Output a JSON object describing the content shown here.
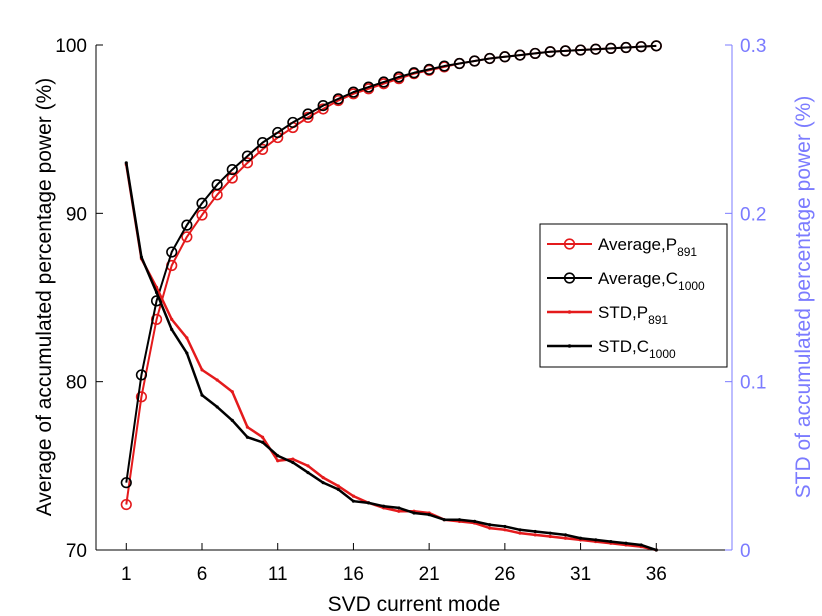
{
  "chart_data": {
    "type": "line",
    "xlabel": "SVD current mode",
    "ylabel_left": "Average of accumulated percentage power (%)",
    "ylabel_right": "STD of accumulated percentage power (%)",
    "xlim": [
      -1,
      41
    ],
    "ylim_left": [
      70,
      100
    ],
    "ylim_right": [
      0,
      0.3
    ],
    "x_ticks": [
      1,
      6,
      11,
      16,
      21,
      26,
      31,
      36
    ],
    "y_left_ticks": [
      70,
      80,
      90,
      100
    ],
    "y_right_ticks": [
      0,
      0.1,
      0.2,
      0.3
    ],
    "legend_position": "right",
    "x": [
      1,
      2,
      3,
      4,
      5,
      6,
      7,
      8,
      9,
      10,
      11,
      12,
      13,
      14,
      15,
      16,
      17,
      18,
      19,
      20,
      21,
      22,
      23,
      24,
      25,
      26,
      27,
      28,
      29,
      30,
      31,
      32,
      33,
      34,
      35,
      36
    ],
    "series": [
      {
        "name": "Average,P",
        "subscript": "891",
        "axis": "left",
        "color": "#e41a1c",
        "marker": "circle",
        "values": [
          72.7,
          79.1,
          83.7,
          86.9,
          88.6,
          89.9,
          91.1,
          92.1,
          93.0,
          93.8,
          94.5,
          95.1,
          95.7,
          96.2,
          96.7,
          97.1,
          97.4,
          97.7,
          98.0,
          98.3,
          98.5,
          98.7,
          98.9,
          99.05,
          99.2,
          99.3,
          99.4,
          99.5,
          99.6,
          99.65,
          99.7,
          99.75,
          99.8,
          99.85,
          99.9,
          99.95
        ]
      },
      {
        "name": "Average,C",
        "subscript": "1000",
        "axis": "left",
        "color": "#000000",
        "marker": "circle",
        "values": [
          74.0,
          80.4,
          84.8,
          87.7,
          89.3,
          90.6,
          91.7,
          92.6,
          93.4,
          94.2,
          94.8,
          95.4,
          95.9,
          96.4,
          96.8,
          97.2,
          97.5,
          97.8,
          98.1,
          98.35,
          98.55,
          98.75,
          98.9,
          99.05,
          99.2,
          99.3,
          99.4,
          99.5,
          99.6,
          99.65,
          99.7,
          99.75,
          99.8,
          99.85,
          99.9,
          99.95
        ]
      },
      {
        "name": "STD,P",
        "subscript": "891",
        "axis": "right",
        "color": "#e41a1c",
        "marker": "dot",
        "values": [
          0.229,
          0.173,
          0.156,
          0.137,
          0.126,
          0.107,
          0.101,
          0.094,
          0.073,
          0.067,
          0.053,
          0.054,
          0.05,
          0.043,
          0.038,
          0.032,
          0.028,
          0.025,
          0.023,
          0.023,
          0.022,
          0.018,
          0.017,
          0.016,
          0.013,
          0.012,
          0.01,
          0.009,
          0.008,
          0.007,
          0.006,
          0.005,
          0.004,
          0.003,
          0.002,
          0.0
        ]
      },
      {
        "name": "STD,C",
        "subscript": "1000",
        "axis": "right",
        "color": "#000000",
        "marker": "dot",
        "values": [
          0.23,
          0.174,
          0.153,
          0.131,
          0.117,
          0.092,
          0.085,
          0.077,
          0.067,
          0.064,
          0.056,
          0.052,
          0.046,
          0.04,
          0.036,
          0.029,
          0.028,
          0.026,
          0.025,
          0.022,
          0.021,
          0.018,
          0.018,
          0.017,
          0.015,
          0.014,
          0.012,
          0.011,
          0.01,
          0.009,
          0.007,
          0.006,
          0.005,
          0.004,
          0.003,
          0.0
        ]
      }
    ]
  }
}
